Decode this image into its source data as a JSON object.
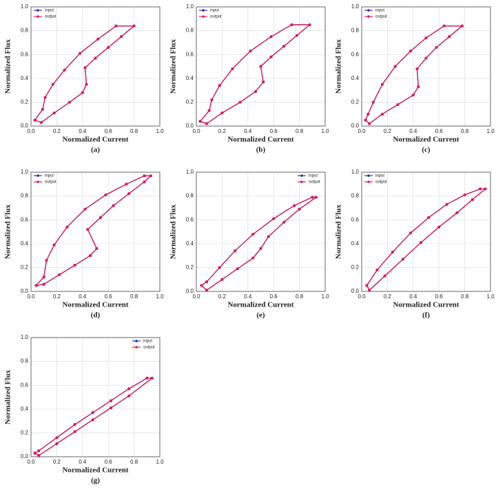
{
  "chart_data": [
    {
      "type": "line",
      "caption": "(a)",
      "x_label": "Normalized Current",
      "y_label": "Normalized Flux",
      "xlim": [
        0,
        1
      ],
      "ylim": [
        0,
        1
      ],
      "xticks": [
        {
          "value": 0,
          "label": "0.0"
        },
        0.2,
        0.4,
        0.6,
        0.8,
        {
          "value": 1,
          "label": "1.0"
        }
      ],
      "yticks": [
        {
          "value": 0,
          "label": "0.0"
        },
        0.2,
        0.4,
        0.6,
        0.8,
        {
          "value": 1,
          "label": "1.0"
        }
      ],
      "grid": true,
      "legend": "upper left",
      "series": [
        {
          "name": "input",
          "color": "#2b2bb0",
          "x": [
            0.03,
            0.08,
            0.18,
            0.3,
            0.4,
            0.43,
            0.42,
            0.5,
            0.6,
            0.7,
            0.8,
            0.66,
            0.52,
            0.38,
            0.26,
            0.17,
            0.11,
            0.09,
            0.03
          ],
          "values": [
            0.05,
            0.03,
            0.11,
            0.2,
            0.28,
            0.35,
            0.49,
            0.57,
            0.66,
            0.75,
            0.84,
            0.84,
            0.73,
            0.61,
            0.47,
            0.35,
            0.24,
            0.14,
            0.05
          ]
        },
        {
          "name": "output",
          "color": "#d81b60",
          "x": [
            0.03,
            0.08,
            0.18,
            0.3,
            0.4,
            0.43,
            0.42,
            0.5,
            0.6,
            0.7,
            0.8,
            0.66,
            0.52,
            0.38,
            0.26,
            0.17,
            0.11,
            0.09,
            0.03
          ],
          "values": [
            0.05,
            0.03,
            0.11,
            0.2,
            0.28,
            0.35,
            0.49,
            0.57,
            0.66,
            0.75,
            0.84,
            0.84,
            0.73,
            0.61,
            0.47,
            0.35,
            0.24,
            0.14,
            0.05
          ]
        }
      ]
    },
    {
      "type": "line",
      "caption": "(b)",
      "x_label": "Normalized Current",
      "y_label": "Normalized Flux",
      "xlim": [
        0,
        1
      ],
      "ylim": [
        0,
        1
      ],
      "xticks": [
        {
          "value": 0,
          "label": "0.0"
        },
        0.2,
        0.4,
        0.6,
        0.8,
        {
          "value": 1,
          "label": "1.0"
        }
      ],
      "yticks": [
        {
          "value": 0,
          "label": "0.0"
        },
        0.2,
        0.4,
        0.6,
        0.8,
        {
          "value": 1,
          "label": "1.0"
        }
      ],
      "grid": true,
      "legend": "upper left",
      "series": [
        {
          "name": "input",
          "color": "#2b2bb0",
          "x": [
            0.03,
            0.08,
            0.2,
            0.34,
            0.46,
            0.52,
            0.5,
            0.58,
            0.68,
            0.78,
            0.88,
            0.74,
            0.58,
            0.42,
            0.28,
            0.18,
            0.12,
            0.1,
            0.03
          ],
          "values": [
            0.04,
            0.02,
            0.11,
            0.2,
            0.29,
            0.37,
            0.5,
            0.58,
            0.67,
            0.76,
            0.85,
            0.85,
            0.75,
            0.63,
            0.48,
            0.34,
            0.22,
            0.13,
            0.04
          ]
        },
        {
          "name": "output",
          "color": "#d81b60",
          "x": [
            0.03,
            0.08,
            0.2,
            0.34,
            0.46,
            0.52,
            0.5,
            0.58,
            0.68,
            0.78,
            0.88,
            0.74,
            0.58,
            0.42,
            0.28,
            0.18,
            0.12,
            0.1,
            0.03
          ],
          "values": [
            0.04,
            0.02,
            0.11,
            0.2,
            0.29,
            0.37,
            0.5,
            0.58,
            0.67,
            0.76,
            0.85,
            0.85,
            0.75,
            0.63,
            0.48,
            0.34,
            0.22,
            0.13,
            0.04
          ]
        }
      ]
    },
    {
      "type": "line",
      "caption": "(c)",
      "x_label": "Normalized Current",
      "y_label": "Normalized Flux",
      "xlim": [
        0,
        1
      ],
      "ylim": [
        0,
        1
      ],
      "xticks": [
        {
          "value": 0,
          "label": "0.0"
        },
        0.2,
        0.4,
        0.6,
        0.8,
        {
          "value": 1,
          "label": "1.0"
        }
      ],
      "yticks": [
        {
          "value": 0,
          "label": "0.0"
        },
        0.2,
        0.4,
        0.6,
        0.8,
        {
          "value": 1,
          "label": "1.0"
        }
      ],
      "grid": true,
      "legend": "upper left",
      "series": [
        {
          "name": "input",
          "color": "#2b2bb0",
          "x": [
            0.03,
            0.06,
            0.16,
            0.28,
            0.4,
            0.44,
            0.43,
            0.5,
            0.58,
            0.68,
            0.78,
            0.64,
            0.5,
            0.38,
            0.26,
            0.16,
            0.09,
            0.05,
            0.03
          ],
          "values": [
            0.05,
            0.02,
            0.1,
            0.18,
            0.26,
            0.33,
            0.48,
            0.57,
            0.66,
            0.75,
            0.84,
            0.84,
            0.74,
            0.63,
            0.5,
            0.35,
            0.2,
            0.1,
            0.05
          ]
        },
        {
          "name": "output",
          "color": "#d81b60",
          "x": [
            0.03,
            0.06,
            0.16,
            0.28,
            0.4,
            0.44,
            0.43,
            0.5,
            0.58,
            0.68,
            0.78,
            0.64,
            0.5,
            0.38,
            0.26,
            0.16,
            0.09,
            0.05,
            0.03
          ],
          "values": [
            0.05,
            0.02,
            0.1,
            0.18,
            0.26,
            0.33,
            0.48,
            0.57,
            0.66,
            0.75,
            0.84,
            0.84,
            0.74,
            0.63,
            0.5,
            0.35,
            0.2,
            0.1,
            0.05
          ]
        }
      ]
    },
    {
      "type": "line",
      "caption": "(d)",
      "x_label": "Normalized Current",
      "y_label": "Normalized Flux",
      "xlim": [
        0,
        1
      ],
      "ylim": [
        0,
        1
      ],
      "xticks": [
        {
          "value": 0,
          "label": "0.0"
        },
        0.2,
        0.4,
        0.6,
        0.8,
        {
          "value": 1,
          "label": "1.0"
        }
      ],
      "yticks": [
        {
          "value": 0,
          "label": "0.0"
        },
        0.2,
        0.4,
        0.6,
        0.8,
        {
          "value": 1,
          "label": "1.0"
        }
      ],
      "grid": true,
      "legend": "upper left",
      "series": [
        {
          "name": "input",
          "color": "#2b2bb0",
          "x": [
            0.04,
            0.1,
            0.22,
            0.34,
            0.46,
            0.51,
            0.44,
            0.54,
            0.64,
            0.76,
            0.88,
            0.93,
            0.88,
            0.74,
            0.58,
            0.42,
            0.28,
            0.18,
            0.12,
            0.1,
            0.04
          ],
          "values": [
            0.05,
            0.06,
            0.14,
            0.22,
            0.3,
            0.36,
            0.52,
            0.62,
            0.72,
            0.82,
            0.92,
            0.97,
            0.97,
            0.9,
            0.81,
            0.69,
            0.54,
            0.39,
            0.26,
            0.12,
            0.05
          ]
        },
        {
          "name": "output",
          "color": "#d81b60",
          "x": [
            0.04,
            0.1,
            0.22,
            0.34,
            0.46,
            0.51,
            0.44,
            0.54,
            0.64,
            0.76,
            0.88,
            0.93,
            0.88,
            0.74,
            0.58,
            0.42,
            0.28,
            0.18,
            0.12,
            0.1,
            0.04
          ],
          "values": [
            0.05,
            0.06,
            0.14,
            0.22,
            0.3,
            0.36,
            0.52,
            0.62,
            0.72,
            0.82,
            0.92,
            0.97,
            0.97,
            0.9,
            0.81,
            0.69,
            0.54,
            0.39,
            0.26,
            0.12,
            0.05
          ]
        }
      ]
    },
    {
      "type": "line",
      "caption": "(e)",
      "x_label": "Normalized Current",
      "y_label": "Normalized Flux",
      "xlim": [
        0,
        1
      ],
      "ylim": [
        0,
        1
      ],
      "xticks": [
        {
          "value": 0,
          "label": "0.0"
        },
        0.2,
        0.4,
        0.6,
        0.8,
        {
          "value": 1,
          "label": "1.0"
        }
      ],
      "yticks": [
        {
          "value": 0,
          "label": "0.0"
        },
        0.2,
        0.4,
        0.6,
        0.8,
        {
          "value": 1,
          "label": "1.0"
        }
      ],
      "grid": true,
      "legend": "upper right",
      "series": [
        {
          "name": "input",
          "color": "#2b2bb0",
          "x": [
            0.04,
            0.08,
            0.2,
            0.32,
            0.44,
            0.5,
            0.56,
            0.68,
            0.8,
            0.93,
            0.9,
            0.76,
            0.6,
            0.44,
            0.3,
            0.18,
            0.08,
            0.04
          ],
          "values": [
            0.05,
            0.01,
            0.1,
            0.19,
            0.28,
            0.36,
            0.46,
            0.58,
            0.69,
            0.79,
            0.79,
            0.72,
            0.61,
            0.48,
            0.34,
            0.2,
            0.08,
            0.05
          ]
        },
        {
          "name": "output",
          "color": "#d81b60",
          "x": [
            0.04,
            0.08,
            0.2,
            0.32,
            0.44,
            0.5,
            0.56,
            0.68,
            0.8,
            0.93,
            0.9,
            0.76,
            0.6,
            0.44,
            0.3,
            0.18,
            0.08,
            0.04
          ],
          "values": [
            0.05,
            0.01,
            0.1,
            0.19,
            0.28,
            0.36,
            0.46,
            0.58,
            0.69,
            0.79,
            0.79,
            0.72,
            0.61,
            0.48,
            0.34,
            0.2,
            0.08,
            0.05
          ]
        }
      ]
    },
    {
      "type": "line",
      "caption": "(f)",
      "x_label": "Normalized Current",
      "y_label": "Normalized Flux",
      "xlim": [
        0,
        1
      ],
      "ylim": [
        0,
        1
      ],
      "xticks": [
        {
          "value": 0,
          "label": "0.0"
        },
        0.2,
        0.4,
        0.6,
        0.8,
        {
          "value": 1,
          "label": "1.0"
        }
      ],
      "yticks": [
        {
          "value": 0,
          "label": "0.0"
        },
        0.2,
        0.4,
        0.6,
        0.8,
        {
          "value": 1,
          "label": "1.0"
        }
      ],
      "grid": true,
      "legend": "upper left",
      "series": [
        {
          "name": "input",
          "color": "#2b2bb0",
          "x": [
            0.04,
            0.06,
            0.18,
            0.32,
            0.46,
            0.6,
            0.74,
            0.86,
            0.96,
            0.92,
            0.8,
            0.66,
            0.52,
            0.38,
            0.24,
            0.12,
            0.04
          ],
          "values": [
            0.05,
            0.01,
            0.13,
            0.27,
            0.41,
            0.54,
            0.66,
            0.77,
            0.86,
            0.86,
            0.81,
            0.73,
            0.62,
            0.49,
            0.33,
            0.18,
            0.05
          ]
        },
        {
          "name": "output",
          "color": "#d81b60",
          "x": [
            0.04,
            0.06,
            0.18,
            0.32,
            0.46,
            0.6,
            0.74,
            0.86,
            0.96,
            0.92,
            0.8,
            0.66,
            0.52,
            0.38,
            0.24,
            0.12,
            0.04
          ],
          "values": [
            0.05,
            0.01,
            0.13,
            0.27,
            0.41,
            0.54,
            0.66,
            0.77,
            0.86,
            0.86,
            0.81,
            0.73,
            0.62,
            0.49,
            0.33,
            0.18,
            0.05
          ]
        }
      ]
    },
    {
      "type": "line",
      "caption": "(g)",
      "x_label": "Normalized Current",
      "y_label": "Normalized Flux",
      "xlim": [
        0,
        1
      ],
      "ylim": [
        0,
        1
      ],
      "xticks": [
        {
          "value": 0,
          "label": "0.0"
        },
        0.2,
        0.4,
        0.6,
        0.8,
        {
          "value": 1,
          "label": "1.0"
        }
      ],
      "yticks": [
        {
          "value": 0,
          "label": "0.0"
        },
        0.2,
        0.4,
        0.6,
        0.8,
        {
          "value": 1,
          "label": "1.0"
        }
      ],
      "grid": true,
      "legend": "upper right",
      "series": [
        {
          "name": "input",
          "color": "#2b2bb0",
          "x": [
            0.03,
            0.06,
            0.2,
            0.34,
            0.48,
            0.62,
            0.76,
            0.94,
            0.9,
            0.76,
            0.62,
            0.48,
            0.34,
            0.2,
            0.06,
            0.03
          ],
          "values": [
            0.03,
            0.01,
            0.11,
            0.21,
            0.31,
            0.41,
            0.51,
            0.66,
            0.66,
            0.57,
            0.47,
            0.37,
            0.27,
            0.16,
            0.05,
            0.03
          ]
        },
        {
          "name": "output",
          "color": "#d81b60",
          "x": [
            0.03,
            0.06,
            0.2,
            0.34,
            0.48,
            0.62,
            0.76,
            0.94,
            0.9,
            0.76,
            0.62,
            0.48,
            0.34,
            0.2,
            0.06,
            0.03
          ],
          "values": [
            0.03,
            0.01,
            0.11,
            0.21,
            0.31,
            0.41,
            0.51,
            0.66,
            0.66,
            0.57,
            0.47,
            0.37,
            0.27,
            0.16,
            0.05,
            0.03
          ]
        }
      ]
    }
  ]
}
